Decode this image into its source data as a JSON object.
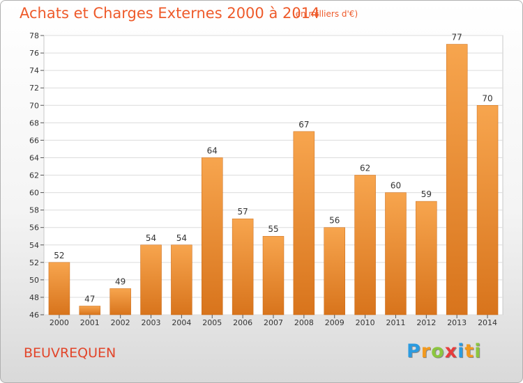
{
  "title": "Achats et Charges Externes 2000 à 2014",
  "subtitle": "(en milliers d'€)",
  "commune": "BEUVREQUEN",
  "logo": {
    "letters": [
      "P",
      "r",
      "o",
      "x",
      "i",
      "t",
      "i"
    ],
    "colors": [
      "#2b9be0",
      "#f39a1e",
      "#8cc63f",
      "#e73c3c",
      "#2b9be0",
      "#f39a1e",
      "#8cc63f"
    ]
  },
  "colors": {
    "bar_top": "#f7a54e",
    "bar_bottom": "#d8741c",
    "title": "#ee5a2a",
    "commune": "#e2452a"
  },
  "chart_data": {
    "type": "bar",
    "categories": [
      "2000",
      "2001",
      "2002",
      "2003",
      "2004",
      "2005",
      "2006",
      "2007",
      "2008",
      "2009",
      "2010",
      "2011",
      "2012",
      "2013",
      "2014"
    ],
    "values": [
      52,
      47,
      49,
      54,
      54,
      64,
      57,
      55,
      67,
      56,
      62,
      60,
      59,
      77,
      70
    ],
    "ylim": [
      46,
      78
    ],
    "yticks": [
      46,
      48,
      50,
      52,
      54,
      56,
      58,
      60,
      62,
      64,
      66,
      68,
      70,
      72,
      74,
      76,
      78
    ],
    "grid": true,
    "legend": "none"
  }
}
